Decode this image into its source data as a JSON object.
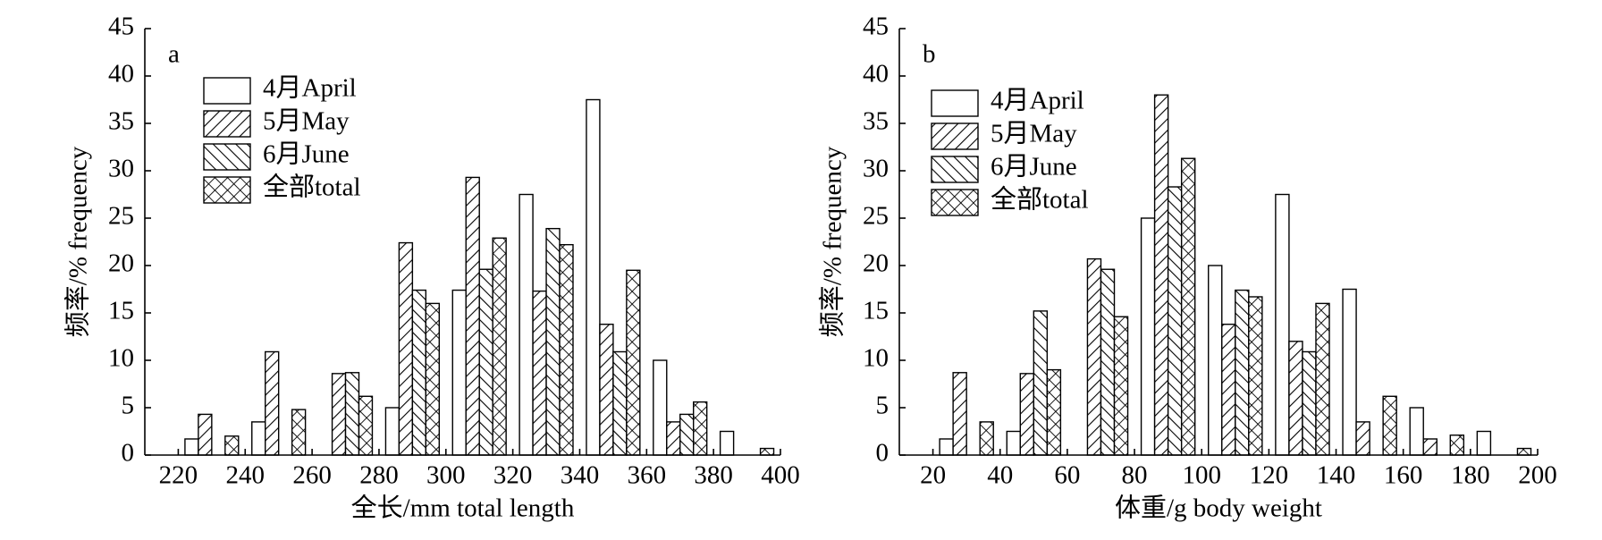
{
  "chart_data": [
    {
      "type": "bar",
      "panel": "a",
      "xlabel": "全长/mm total length",
      "ylabel": "频率/% frequency",
      "x": [
        230,
        250,
        270,
        290,
        310,
        330,
        350,
        370,
        390
      ],
      "series": [
        {
          "name": "4月April",
          "color": "#000000",
          "hatch": "none",
          "values": [
            1.7,
            3.5,
            0,
            5,
            17.4,
            27.5,
            37.5,
            10,
            2.5
          ]
        },
        {
          "name": "5月May",
          "color": "#000000",
          "hatch": "/",
          "values": [
            4.3,
            10.9,
            8.6,
            22.4,
            29.3,
            17.3,
            13.8,
            3.5,
            0
          ]
        },
        {
          "name": "6月June",
          "color": "#000000",
          "hatch": "\\",
          "values": [
            0,
            0,
            8.7,
            17.4,
            19.6,
            23.9,
            10.9,
            4.3,
            0
          ]
        },
        {
          "name": "全部total",
          "color": "#000000",
          "hatch": "x",
          "values": [
            2.0,
            4.8,
            6.2,
            16.0,
            22.9,
            22.2,
            19.5,
            5.6,
            0.7
          ]
        }
      ],
      "xlim": [
        210,
        400
      ],
      "xticks": [
        220,
        240,
        260,
        280,
        300,
        320,
        340,
        360,
        380,
        400
      ],
      "ylim": [
        0,
        45
      ],
      "yticks": [
        0,
        5,
        10,
        15,
        20,
        25,
        30,
        35,
        40,
        45
      ],
      "legend": "upper left"
    },
    {
      "type": "bar",
      "panel": "b",
      "xlabel": "体重/g body weight",
      "ylabel": "频率/% frequency",
      "x": [
        30,
        50,
        70,
        90,
        110,
        130,
        150,
        170,
        190
      ],
      "series": [
        {
          "name": "4月April",
          "color": "#000000",
          "hatch": "none",
          "values": [
            1.7,
            2.5,
            0,
            25,
            20,
            27.5,
            17.5,
            5,
            2.5
          ]
        },
        {
          "name": "5月May",
          "color": "#000000",
          "hatch": "/",
          "values": [
            8.7,
            8.6,
            20.7,
            38,
            13.8,
            12,
            3.5,
            1.7,
            0
          ]
        },
        {
          "name": "6月June",
          "color": "#000000",
          "hatch": "\\",
          "values": [
            0,
            15.2,
            19.6,
            28.3,
            17.4,
            10.9,
            0,
            0,
            0
          ]
        },
        {
          "name": "全部total",
          "color": "#000000",
          "hatch": "x",
          "values": [
            3.5,
            9.0,
            14.6,
            31.3,
            16.7,
            16.0,
            6.2,
            2.1,
            0.7
          ]
        }
      ],
      "xlim": [
        10,
        200
      ],
      "xticks": [
        20,
        40,
        60,
        80,
        100,
        120,
        140,
        160,
        180,
        200
      ],
      "ylim": [
        0,
        45
      ],
      "yticks": [
        0,
        5,
        10,
        15,
        20,
        25,
        30,
        35,
        40,
        45
      ],
      "legend": "upper left"
    }
  ]
}
